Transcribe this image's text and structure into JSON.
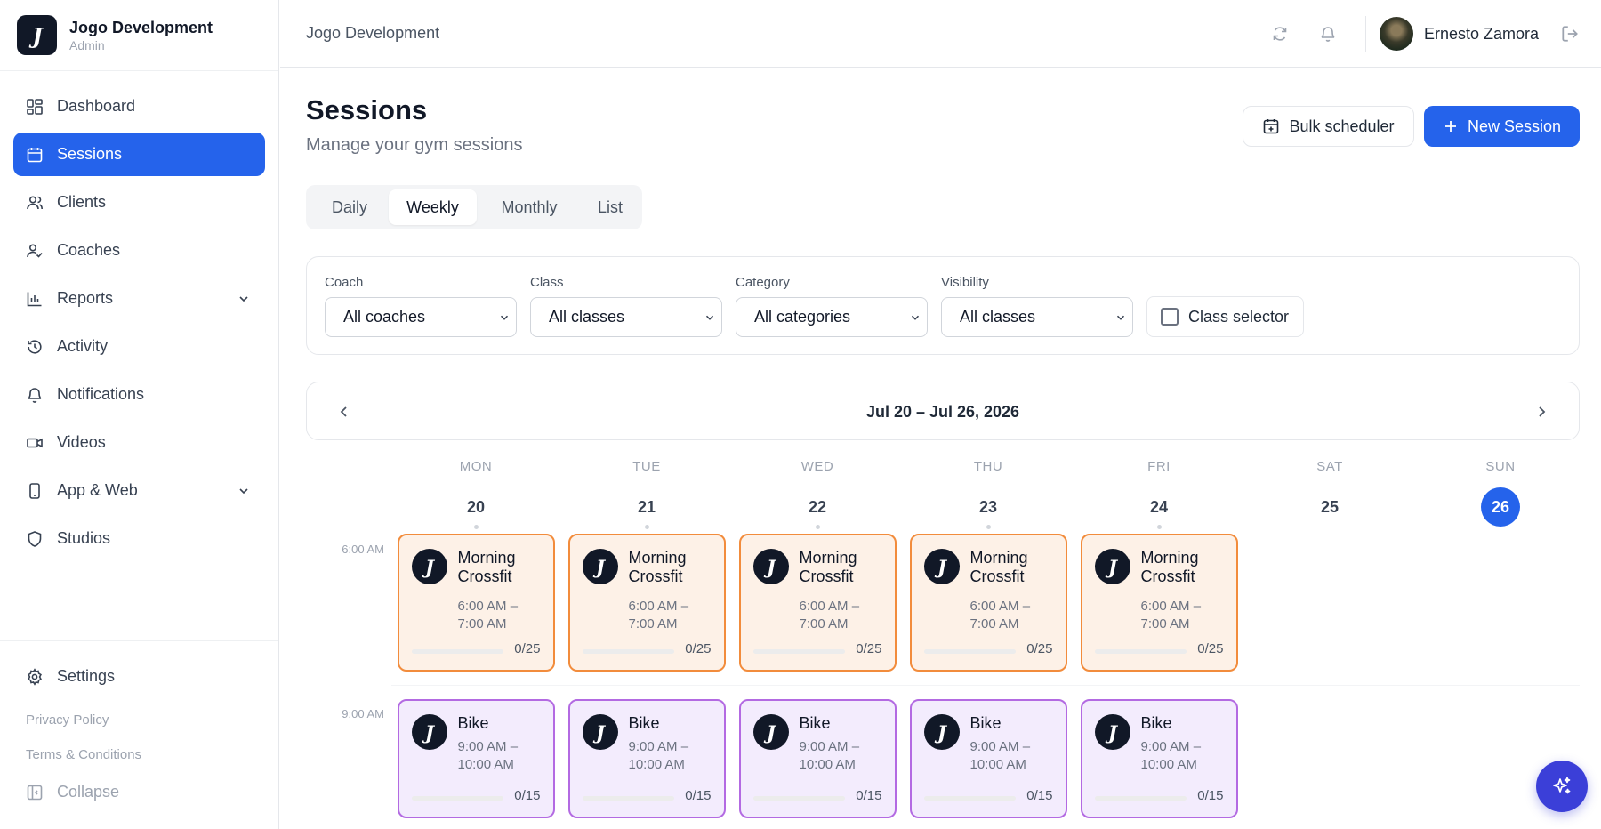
{
  "brand": {
    "name": "Jogo Development",
    "role": "Admin",
    "logo_letter": "J"
  },
  "sidebar": {
    "items": [
      {
        "label": "Dashboard",
        "icon": "dashboard-icon"
      },
      {
        "label": "Sessions",
        "icon": "calendar-icon",
        "active": true
      },
      {
        "label": "Clients",
        "icon": "users-icon"
      },
      {
        "label": "Coaches",
        "icon": "user-check-icon"
      },
      {
        "label": "Reports",
        "icon": "bar-chart-icon",
        "has_submenu": true
      },
      {
        "label": "Activity",
        "icon": "history-icon"
      },
      {
        "label": "Notifications",
        "icon": "bell-icon"
      },
      {
        "label": "Videos",
        "icon": "video-icon"
      },
      {
        "label": "App & Web",
        "icon": "smartphone-icon",
        "has_submenu": true
      },
      {
        "label": "Studios",
        "icon": "shield-icon"
      }
    ],
    "settings_label": "Settings",
    "privacy_label": "Privacy Policy",
    "terms_label": "Terms & Conditions",
    "collapse_label": "Collapse"
  },
  "header": {
    "title": "Jogo Development",
    "user_name": "Ernesto Zamora"
  },
  "page": {
    "title": "Sessions",
    "subtitle": "Manage your gym sessions",
    "bulk_label": "Bulk scheduler",
    "new_label": "New Session"
  },
  "view_tabs": [
    {
      "label": "Daily"
    },
    {
      "label": "Weekly",
      "active": true
    },
    {
      "label": "Monthly"
    },
    {
      "label": "List"
    }
  ],
  "filters": {
    "coach": {
      "label": "Coach",
      "value": "All coaches"
    },
    "class": {
      "label": "Class",
      "value": "All classes"
    },
    "category": {
      "label": "Category",
      "value": "All categories"
    },
    "visibility": {
      "label": "Visibility",
      "value": "All classes"
    },
    "class_selector_label": "Class selector",
    "class_selector_checked": false
  },
  "calendar": {
    "range_label": "Jul 20 – Jul 26, 2026",
    "days": [
      {
        "name": "MON",
        "num": "20",
        "has_events": true
      },
      {
        "name": "TUE",
        "num": "21",
        "has_events": true
      },
      {
        "name": "WED",
        "num": "22",
        "has_events": true
      },
      {
        "name": "THU",
        "num": "23",
        "has_events": true
      },
      {
        "name": "FRI",
        "num": "24",
        "has_events": true
      },
      {
        "name": "SAT",
        "num": "25",
        "has_events": false
      },
      {
        "name": "SUN",
        "num": "26",
        "has_events": false,
        "today": true
      }
    ],
    "time_slots": [
      "6:00 AM",
      "9:00 AM"
    ],
    "sessions": [
      {
        "day": 0,
        "slot": 0,
        "title": "Morning Crossfit",
        "time_start": "6:00 AM –",
        "time_end": "7:00 AM",
        "count": "0/25",
        "booked_fraction": 0,
        "color": "orange"
      },
      {
        "day": 1,
        "slot": 0,
        "title": "Morning Crossfit",
        "time_start": "6:00 AM –",
        "time_end": "7:00 AM",
        "count": "0/25",
        "booked_fraction": 0,
        "color": "orange"
      },
      {
        "day": 2,
        "slot": 0,
        "title": "Morning Crossfit",
        "time_start": "6:00 AM –",
        "time_end": "7:00 AM",
        "count": "0/25",
        "booked_fraction": 0,
        "color": "orange"
      },
      {
        "day": 3,
        "slot": 0,
        "title": "Morning Crossfit",
        "time_start": "6:00 AM –",
        "time_end": "7:00 AM",
        "count": "0/25",
        "booked_fraction": 0,
        "color": "orange"
      },
      {
        "day": 4,
        "slot": 0,
        "title": "Morning Crossfit",
        "time_start": "6:00 AM –",
        "time_end": "7:00 AM",
        "count": "0/25",
        "booked_fraction": 0,
        "color": "orange"
      },
      {
        "day": 0,
        "slot": 1,
        "title": "Bike",
        "time_start": "9:00 AM –",
        "time_end": "10:00 AM",
        "count": "0/15",
        "booked_fraction": 0,
        "color": "purple"
      },
      {
        "day": 1,
        "slot": 1,
        "title": "Bike",
        "time_start": "9:00 AM –",
        "time_end": "10:00 AM",
        "count": "0/15",
        "booked_fraction": 0,
        "color": "purple"
      },
      {
        "day": 2,
        "slot": 1,
        "title": "Bike",
        "time_start": "9:00 AM –",
        "time_end": "10:00 AM",
        "count": "0/15",
        "booked_fraction": 0,
        "color": "purple"
      },
      {
        "day": 3,
        "slot": 1,
        "title": "Bike",
        "time_start": "9:00 AM –",
        "time_end": "10:00 AM",
        "count": "0/15",
        "booked_fraction": 0,
        "color": "purple"
      },
      {
        "day": 4,
        "slot": 1,
        "title": "Bike",
        "time_start": "9:00 AM –",
        "time_end": "10:00 AM",
        "count": "0/15",
        "booked_fraction": 0,
        "color": "purple"
      }
    ]
  },
  "colors": {
    "accent": "#2563eb",
    "session_orange_border": "#f28c3c",
    "session_orange_bg": "#fdf1e7",
    "session_purple_border": "#b36ae2",
    "session_purple_bg": "#f3ecfd",
    "fab": "#3b3fd8"
  },
  "fab_icon": "sparkles-icon"
}
